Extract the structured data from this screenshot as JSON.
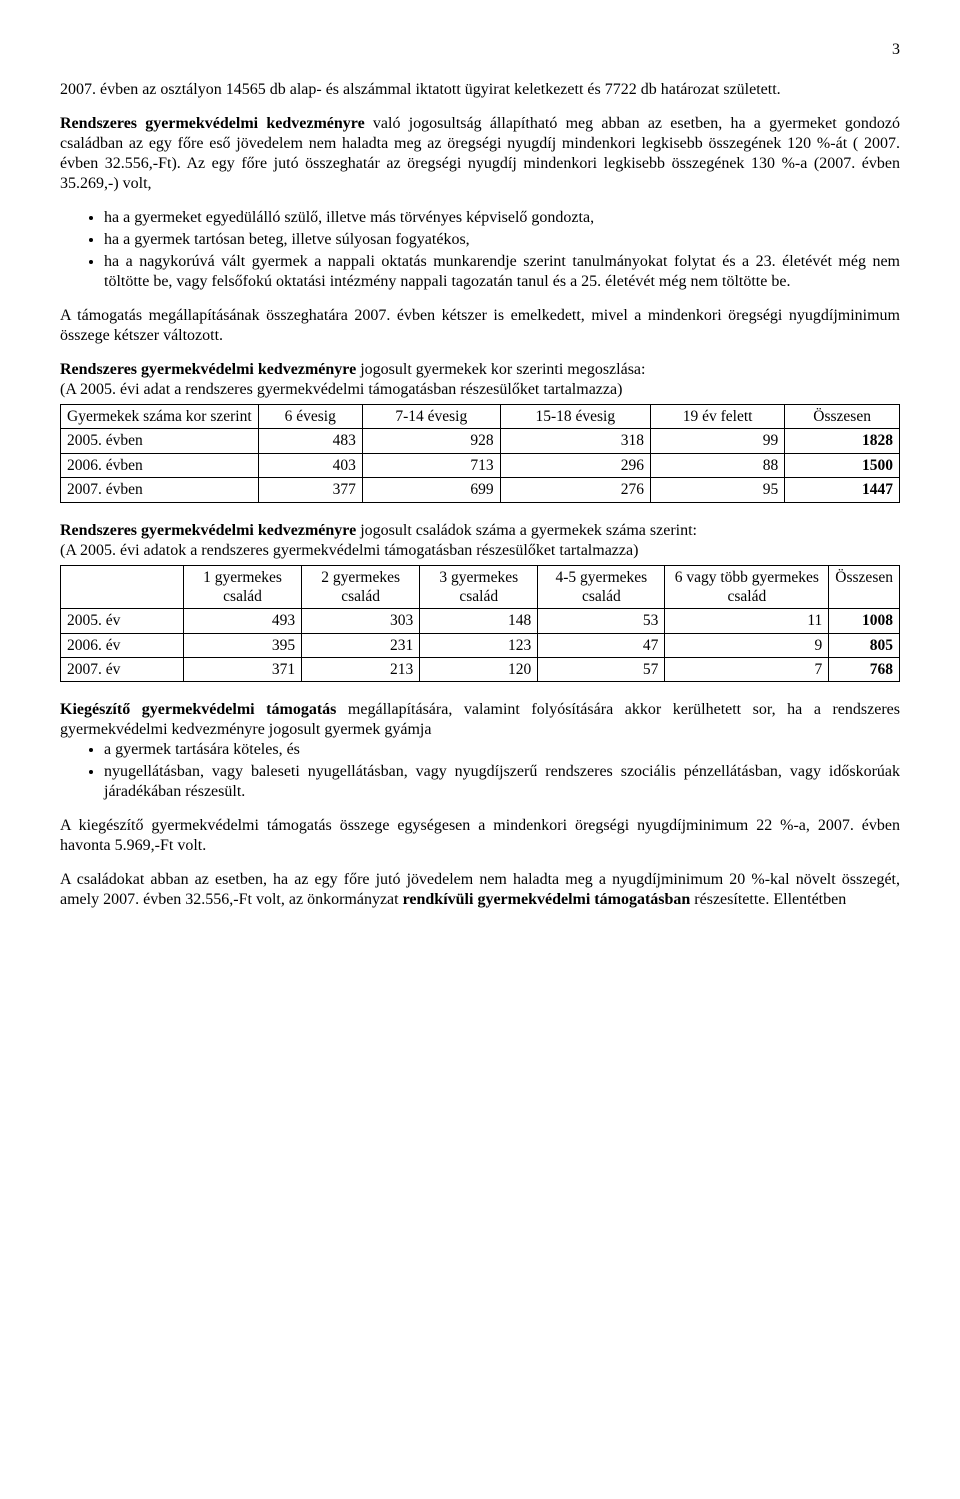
{
  "pageNumber": "3",
  "para1": "2007. évben az osztályon 14565 db alap- és alszámmal iktatott ügyirat keletkezett és 7722 db határozat született.",
  "para2_lead": "Rendszeres gyermekvédelmi kedvezményre",
  "para2_rest": " való jogosultság állapítható meg abban az esetben, ha a gyermeket gondozó családban az egy főre eső jövedelem nem haladta meg az öregségi nyugdíj mindenkori legkisebb összegének 120 %-át ( 2007. évben 32.556,-Ft). Az egy főre jutó összeghatár az öregségi nyugdíj mindenkori legkisebb összegének 130 %-a (2007. évben 35.269,-) volt,",
  "bullets1": [
    "ha a gyermeket egyedülálló szülő, illetve más törvényes képviselő gondozta,",
    "ha a gyermek tartósan beteg, illetve súlyosan fogyatékos,",
    "ha a nagykorúvá vált gyermek a nappali oktatás munkarendje szerint tanulmányokat folytat és a 23. életévét még nem töltötte be, vagy felsőfokú oktatási intézmény nappali tagozatán tanul és a 25. életévét még nem töltötte be."
  ],
  "para3": "A támogatás megállapításának összeghatára 2007. évben kétszer is emelkedett, mivel a mindenkori öregségi nyugdíjminimum összege kétszer változott.",
  "para4_lead": "Rendszeres gyermekvédelmi kedvezményre",
  "para4_rest": " jogosult gyermekek kor szerinti megoszlása:",
  "para4_note": "(A 2005. évi adat a rendszeres gyermekvédelmi támogatásban részesülőket tartalmazza)",
  "table1": {
    "headers": [
      "Gyermekek száma kor szerint",
      "6 évesig",
      "7-14 évesig",
      "15-18 évesig",
      "19 év felett",
      "Összesen"
    ],
    "rows": [
      {
        "label": "2005. évben",
        "cells": [
          "483",
          "928",
          "318",
          "99",
          "1828"
        ]
      },
      {
        "label": "2006. évben",
        "cells": [
          "403",
          "713",
          "296",
          "88",
          "1500"
        ]
      },
      {
        "label": "2007. évben",
        "cells": [
          "377",
          "699",
          "276",
          "95",
          "1447"
        ]
      }
    ]
  },
  "para5_lead": "Rendszeres gyermekvédelmi kedvezményre",
  "para5_rest": " jogosult  családok száma a gyermekek száma szerint:",
  "para5_note": "(A 2005. évi adatok a rendszeres gyermekvédelmi támogatásban részesülőket tartalmazza)",
  "table2": {
    "headers": [
      "",
      "1 gyermekes család",
      "2 gyermekes család",
      "3 gyermekes család",
      "4-5 gyermekes család",
      "6 vagy több gyermekes család",
      "Összesen"
    ],
    "rows": [
      {
        "label": "2005. év",
        "cells": [
          "493",
          "303",
          "148",
          "53",
          "11",
          "1008"
        ]
      },
      {
        "label": "2006. év",
        "cells": [
          "395",
          "231",
          "123",
          "47",
          "9",
          "805"
        ]
      },
      {
        "label": "2007. év",
        "cells": [
          "371",
          "213",
          "120",
          "57",
          "7",
          "768"
        ]
      }
    ]
  },
  "para6_lead": "Kiegészítő gyermekvédelmi támogatás",
  "para6_rest": " megállapítására, valamint folyósítására akkor kerülhetett sor, ha a rendszeres gyermekvédelmi kedvezményre jogosult gyermek gyámja",
  "bullets2": [
    "a gyermek tartására köteles, és",
    "nyugellátásban, vagy baleseti nyugellátásban, vagy nyugdíjszerű rendszeres szociális pénzellátásban, vagy időskorúak járadékában részesült."
  ],
  "para7": "A kiegészítő gyermekvédelmi támogatás összege egységesen a mindenkori öregségi nyugdíjminimum 22 %-a, 2007. évben havonta 5.969,-Ft volt.",
  "para8_pre": "A családokat abban az esetben, ha az egy főre jutó jövedelem nem haladta meg a nyugdíjminimum 20 %-kal növelt összegét, amely 2007. évben 32.556,-Ft volt, az önkormányzat ",
  "para8_strong": "rendkívüli gyermekvédelmi támogatásban",
  "para8_post": " részesítette. Ellentétben"
}
